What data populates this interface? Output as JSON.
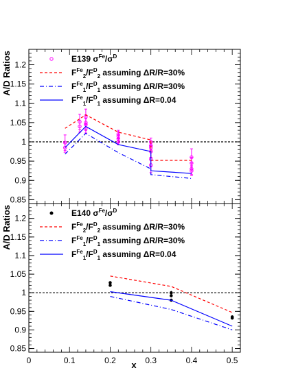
{
  "chart_data": [
    {
      "type": "line",
      "ylabel": "A/D Ratios",
      "xlim": [
        0,
        0.52
      ],
      "ylim": [
        0.84,
        1.24
      ],
      "yticks": [
        "0.85",
        "0.9",
        "0.95",
        "1",
        "1.05",
        "1.1",
        "1.15",
        "1.2"
      ],
      "reference_line": 1,
      "legend": [
        {
          "main": "E139 σ",
          "s1": "Fe",
          "mid": "/σ",
          "s2": "D",
          "tail": ""
        },
        {
          "main": "F",
          "s1": "Fe",
          "sub1": "2",
          "mid": "/F",
          "s2": "D",
          "sub2": "2",
          "tail": " assuming ΔR/R=30%"
        },
        {
          "main": "F",
          "s1": "Fe",
          "sub1": "1",
          "mid": "/F",
          "s2": "D",
          "sub2": "1",
          "tail": " assuming ΔR/R=30%"
        },
        {
          "main": "F",
          "s1": "Fe",
          "sub1": "1",
          "mid": "/F",
          "s2": "D",
          "sub2": "1",
          "tail": " assuming ΔR=0.04"
        }
      ],
      "series": [
        {
          "name": "E139 σFe/σD",
          "kind": "points",
          "color": "#ff00ff",
          "points": [
            {
              "x": 0.089,
              "y": 0.998,
              "err": 0.02
            },
            {
              "x": 0.089,
              "y": 0.985,
              "err": 0.012
            },
            {
              "x": 0.125,
              "y": 1.04,
              "err": 0.015
            },
            {
              "x": 0.125,
              "y": 1.052,
              "err": 0.02
            },
            {
              "x": 0.14,
              "y": 1.05,
              "err": 0.02
            },
            {
              "x": 0.14,
              "y": 1.065,
              "err": 0.02
            },
            {
              "x": 0.14,
              "y": 1.045,
              "err": 0.015
            },
            {
              "x": 0.14,
              "y": 1.035,
              "err": 0.012
            },
            {
              "x": 0.22,
              "y": 1.02,
              "err": 0.01
            },
            {
              "x": 0.22,
              "y": 1.008,
              "err": 0.01
            },
            {
              "x": 0.22,
              "y": 1.0,
              "err": 0.008
            },
            {
              "x": 0.22,
              "y": 1.015,
              "err": 0.012
            },
            {
              "x": 0.3,
              "y": 1.0,
              "err": 0.01
            },
            {
              "x": 0.3,
              "y": 0.99,
              "err": 0.01
            },
            {
              "x": 0.3,
              "y": 0.975,
              "err": 0.015
            },
            {
              "x": 0.3,
              "y": 0.955,
              "err": 0.02
            },
            {
              "x": 0.3,
              "y": 0.94,
              "err": 0.02
            },
            {
              "x": 0.3,
              "y": 0.985,
              "err": 0.01
            },
            {
              "x": 0.4,
              "y": 0.96,
              "err": 0.022
            },
            {
              "x": 0.4,
              "y": 0.945,
              "err": 0.015
            },
            {
              "x": 0.4,
              "y": 0.93,
              "err": 0.015
            },
            {
              "x": 0.4,
              "y": 0.925,
              "err": 0.012
            }
          ]
        },
        {
          "name": "F2 ratio ΔR/R=30%",
          "kind": "line",
          "style": "dash",
          "color": "#ff0000",
          "x": [
            0.089,
            0.14,
            0.14,
            0.22,
            0.22,
            0.3,
            0.3,
            0.4
          ],
          "y": [
            1.035,
            1.07,
            1.07,
            1.025,
            1.025,
            1.005,
            0.952,
            0.952
          ]
        },
        {
          "name": "F1 ratio ΔR/R=30%",
          "kind": "line",
          "style": "dashdot",
          "color": "#0000ff",
          "x": [
            0.089,
            0.14,
            0.14,
            0.22,
            0.22,
            0.3,
            0.3,
            0.4
          ],
          "y": [
            0.968,
            1.022,
            1.022,
            0.972,
            0.972,
            0.93,
            0.915,
            0.905
          ]
        },
        {
          "name": "F1 ratio ΔR=0.04",
          "kind": "line",
          "style": "solid",
          "color": "#0000ff",
          "x": [
            0.089,
            0.14,
            0.14,
            0.22,
            0.22,
            0.3,
            0.3,
            0.4
          ],
          "y": [
            0.985,
            1.04,
            1.04,
            0.993,
            0.993,
            0.975,
            0.925,
            0.918
          ]
        }
      ]
    },
    {
      "type": "line",
      "ylabel": "A/D Ratios",
      "xlabel": "x",
      "xlim": [
        0,
        0.52
      ],
      "xticks": [
        "0",
        "0.1",
        "0.2",
        "0.3",
        "0.4",
        "0.5"
      ],
      "ylim": [
        0.84,
        1.24
      ],
      "yticks": [
        "0.85",
        "0.9",
        "0.95",
        "1",
        "1.05",
        "1.1",
        "1.15",
        "1.2"
      ],
      "reference_line": 1,
      "legend": [
        {
          "main": "E140 σ",
          "s1": "Fe",
          "mid": "/σ",
          "s2": "D",
          "tail": ""
        },
        {
          "main": "F",
          "s1": "Fe",
          "sub1": "2",
          "mid": "/F",
          "s2": "D",
          "sub2": "2",
          "tail": " assuming ΔR/R=30%"
        },
        {
          "main": "F",
          "s1": "Fe",
          "sub1": "1",
          "mid": "/F",
          "s2": "D",
          "sub2": "1",
          "tail": " assuming ΔR/R=30%"
        },
        {
          "main": "F",
          "s1": "Fe",
          "sub1": "1",
          "mid": "/F",
          "s2": "D",
          "sub2": "1",
          "tail": " assuming ΔR=0.04"
        }
      ],
      "series": [
        {
          "name": "E140 σFe/σD",
          "kind": "points",
          "color": "#000000",
          "points": [
            {
              "x": 0.2,
              "y": 1.027,
              "err": 0.004
            },
            {
              "x": 0.2,
              "y": 1.02,
              "err": 0.004
            },
            {
              "x": 0.35,
              "y": 1.0,
              "err": 0.005
            },
            {
              "x": 0.35,
              "y": 0.992,
              "err": 0.004
            },
            {
              "x": 0.35,
              "y": 0.98,
              "err": 0.004
            },
            {
              "x": 0.5,
              "y": 0.935,
              "err": 0.004
            },
            {
              "x": 0.5,
              "y": 0.932,
              "err": 0.004
            }
          ]
        },
        {
          "name": "F2 ratio ΔR/R=30%",
          "kind": "line",
          "style": "dash",
          "color": "#ff0000",
          "x": [
            0.2,
            0.35,
            0.35,
            0.5
          ],
          "y": [
            1.045,
            1.017,
            1.017,
            0.947
          ]
        },
        {
          "name": "F1 ratio ΔR/R=30%",
          "kind": "line",
          "style": "dashdot",
          "color": "#0000ff",
          "x": [
            0.2,
            0.35,
            0.35,
            0.5
          ],
          "y": [
            0.99,
            0.955,
            0.955,
            0.9
          ]
        },
        {
          "name": "F1 ratio ΔR=0.04",
          "kind": "line",
          "style": "solid",
          "color": "#0000ff",
          "x": [
            0.2,
            0.35,
            0.35,
            0.5
          ],
          "y": [
            1.003,
            0.98,
            0.98,
            0.91
          ]
        }
      ]
    }
  ]
}
